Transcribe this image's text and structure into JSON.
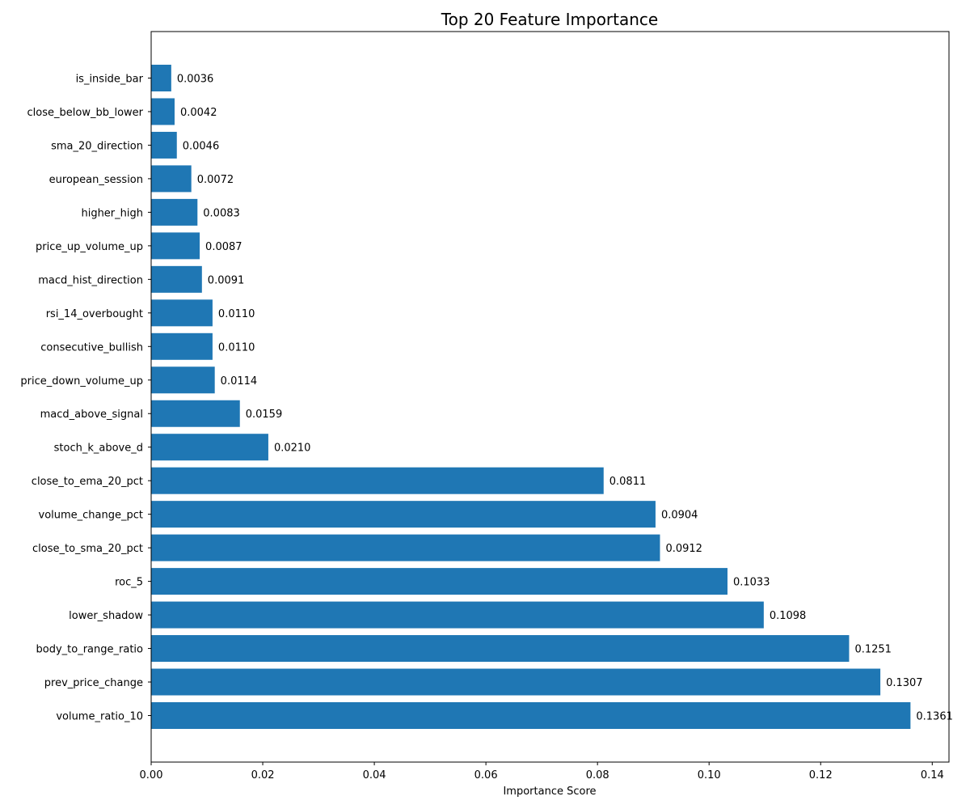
{
  "chart_data": {
    "type": "bar",
    "orientation": "horizontal",
    "title": "Top 20 Feature Importance",
    "xlabel": "Importance Score",
    "ylabel": "",
    "xlim": [
      0,
      0.143
    ],
    "x_ticks": [
      0.0,
      0.02,
      0.04,
      0.06,
      0.08,
      0.1,
      0.12,
      0.14
    ],
    "x_tick_labels": [
      "0.00",
      "0.02",
      "0.04",
      "0.06",
      "0.08",
      "0.10",
      "0.12",
      "0.14"
    ],
    "grid": false,
    "legend": "none",
    "bar_color": "#1f77b4",
    "categories": [
      "volume_ratio_10",
      "prev_price_change",
      "body_to_range_ratio",
      "lower_shadow",
      "roc_5",
      "close_to_sma_20_pct",
      "volume_change_pct",
      "close_to_ema_20_pct",
      "stoch_k_above_d",
      "macd_above_signal",
      "price_down_volume_up",
      "consecutive_bullish",
      "rsi_14_overbought",
      "macd_hist_direction",
      "price_up_volume_up",
      "higher_high",
      "european_session",
      "sma_20_direction",
      "close_below_bb_lower",
      "is_inside_bar"
    ],
    "values": [
      0.1361,
      0.1307,
      0.1251,
      0.1098,
      0.1033,
      0.0912,
      0.0904,
      0.0811,
      0.021,
      0.0159,
      0.0114,
      0.011,
      0.011,
      0.0091,
      0.0087,
      0.0083,
      0.0072,
      0.0046,
      0.0042,
      0.0036
    ],
    "value_labels": [
      "0.1361",
      "0.1307",
      "0.1251",
      "0.1098",
      "0.1033",
      "0.0912",
      "0.0904",
      "0.0811",
      "0.0210",
      "0.0159",
      "0.0114",
      "0.0110",
      "0.0110",
      "0.0091",
      "0.0087",
      "0.0083",
      "0.0072",
      "0.0046",
      "0.0042",
      "0.0036"
    ]
  }
}
